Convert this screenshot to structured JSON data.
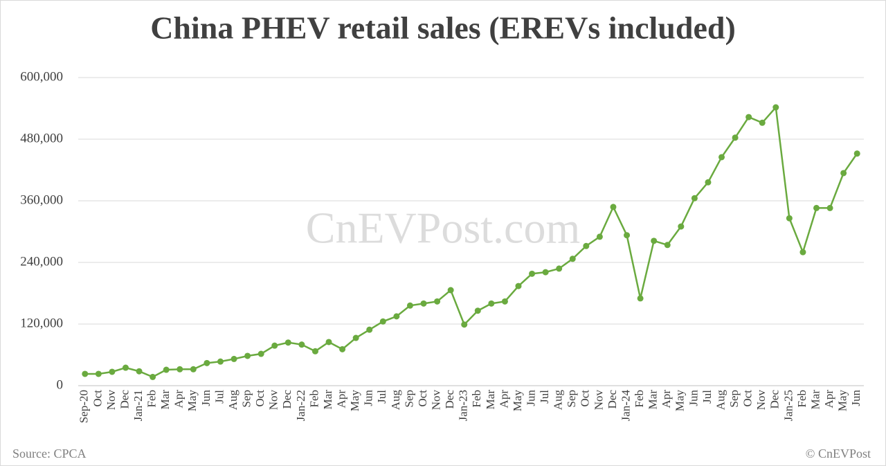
{
  "chart_data": {
    "type": "line",
    "title": "China PHEV retail sales (EREVs included)",
    "watermark": "CnEVPost.com",
    "source": "Source: CPCA",
    "credit": "© CnEVPost",
    "categories": [
      "Sep-20",
      "Oct",
      "Nov",
      "Dec",
      "Jan-21",
      "Feb",
      "Mar",
      "Apr",
      "May",
      "Jun",
      "Jul",
      "Aug",
      "Sep",
      "Oct",
      "Nov",
      "Dec",
      "Jan-22",
      "Feb",
      "Mar",
      "Apr",
      "May",
      "Jun",
      "Jul",
      "Aug",
      "Sep",
      "Oct",
      "Nov",
      "Dec",
      "Jan-23",
      "Feb",
      "Mar",
      "Apr",
      "May",
      "Jun",
      "Jul",
      "Aug",
      "Sep",
      "Oct",
      "Nov",
      "Dec",
      "Jan-24",
      "Feb",
      "Mar",
      "Apr",
      "May",
      "Jun",
      "Jul",
      "Aug",
      "Sep",
      "Oct",
      "Nov",
      "Dec",
      "Jan-25",
      "Feb",
      "Mar",
      "Apr",
      "May",
      "Jun"
    ],
    "values": [
      23000,
      23000,
      27000,
      35000,
      28000,
      17000,
      31000,
      32000,
      32000,
      44000,
      47000,
      52000,
      58000,
      62000,
      78000,
      84000,
      80000,
      67000,
      85000,
      71000,
      93000,
      109000,
      125000,
      135000,
      156000,
      160000,
      164000,
      186000,
      119000,
      146000,
      160000,
      164000,
      194000,
      218000,
      221000,
      228000,
      247000,
      272000,
      290000,
      348000,
      293000,
      170000,
      282000,
      274000,
      310000,
      365000,
      396000,
      445000,
      483000,
      523000,
      512000,
      542000,
      326000,
      260000,
      346000,
      346000,
      414000,
      452000
    ],
    "color": "#6aaa3f",
    "ylim": [
      0,
      600000
    ],
    "yticks": [
      0,
      {
        "value": 120000,
        "label": "120,000"
      },
      {
        "value": 240000,
        "label": "240,000"
      },
      {
        "value": 360000,
        "label": "360,000"
      },
      {
        "value": 480000,
        "label": "480,000"
      },
      {
        "value": 600000,
        "label": "600,000"
      }
    ],
    "grid": true
  }
}
